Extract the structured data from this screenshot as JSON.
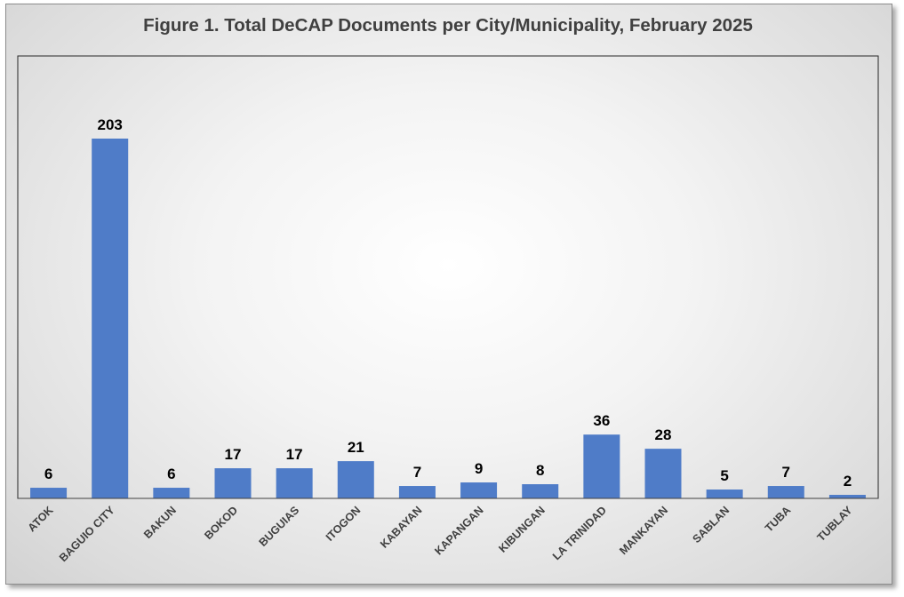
{
  "chart_data": {
    "type": "bar",
    "title": "Figure 1. Total DeCAP Documents per City/Municipality, February 2025",
    "categories": [
      "ATOK",
      "BAGUIO CITY",
      "BAKUN",
      "BOKOD",
      "BUGUIAS",
      "ITOGON",
      "KABAYAN",
      "KAPANGAN",
      "KIBUNGAN",
      "LA TRINIDAD",
      "MANKAYAN",
      "SABLAN",
      "TUBA",
      "TUBLAY"
    ],
    "values": [
      6,
      203,
      6,
      17,
      17,
      21,
      7,
      9,
      8,
      36,
      28,
      5,
      7,
      2
    ],
    "xlabel": "",
    "ylabel": "",
    "ylim": [
      0,
      203
    ],
    "grid": false,
    "legend": "none",
    "data_labels": true,
    "bar_color": "#4f7cc8"
  }
}
